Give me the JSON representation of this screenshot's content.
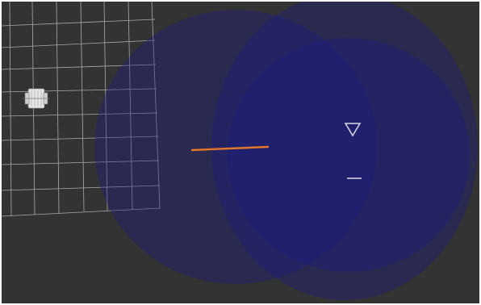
{
  "scene": {
    "view": "3d-viewport",
    "background_color": "#333333",
    "grid": {
      "color": "#c7c7c7"
    },
    "regions": [
      {
        "name": "coverage-zone-1",
        "color": "#1b1b86"
      },
      {
        "name": "coverage-zone-2",
        "color": "#1b1b86"
      },
      {
        "name": "coverage-zone-3",
        "color": "#1b1b86"
      }
    ],
    "objects": {
      "robot": {
        "icon": "robot-icon",
        "color": "#e7e7e7"
      },
      "path_segment": {
        "icon": "path-line",
        "color": "#e2772a"
      },
      "goal_marker": {
        "icon": "triangle-marker-icon",
        "color": "#d9d9e6"
      },
      "dash_marker": {
        "icon": "dash-marker-icon",
        "color": "#d9d9e6"
      }
    }
  }
}
